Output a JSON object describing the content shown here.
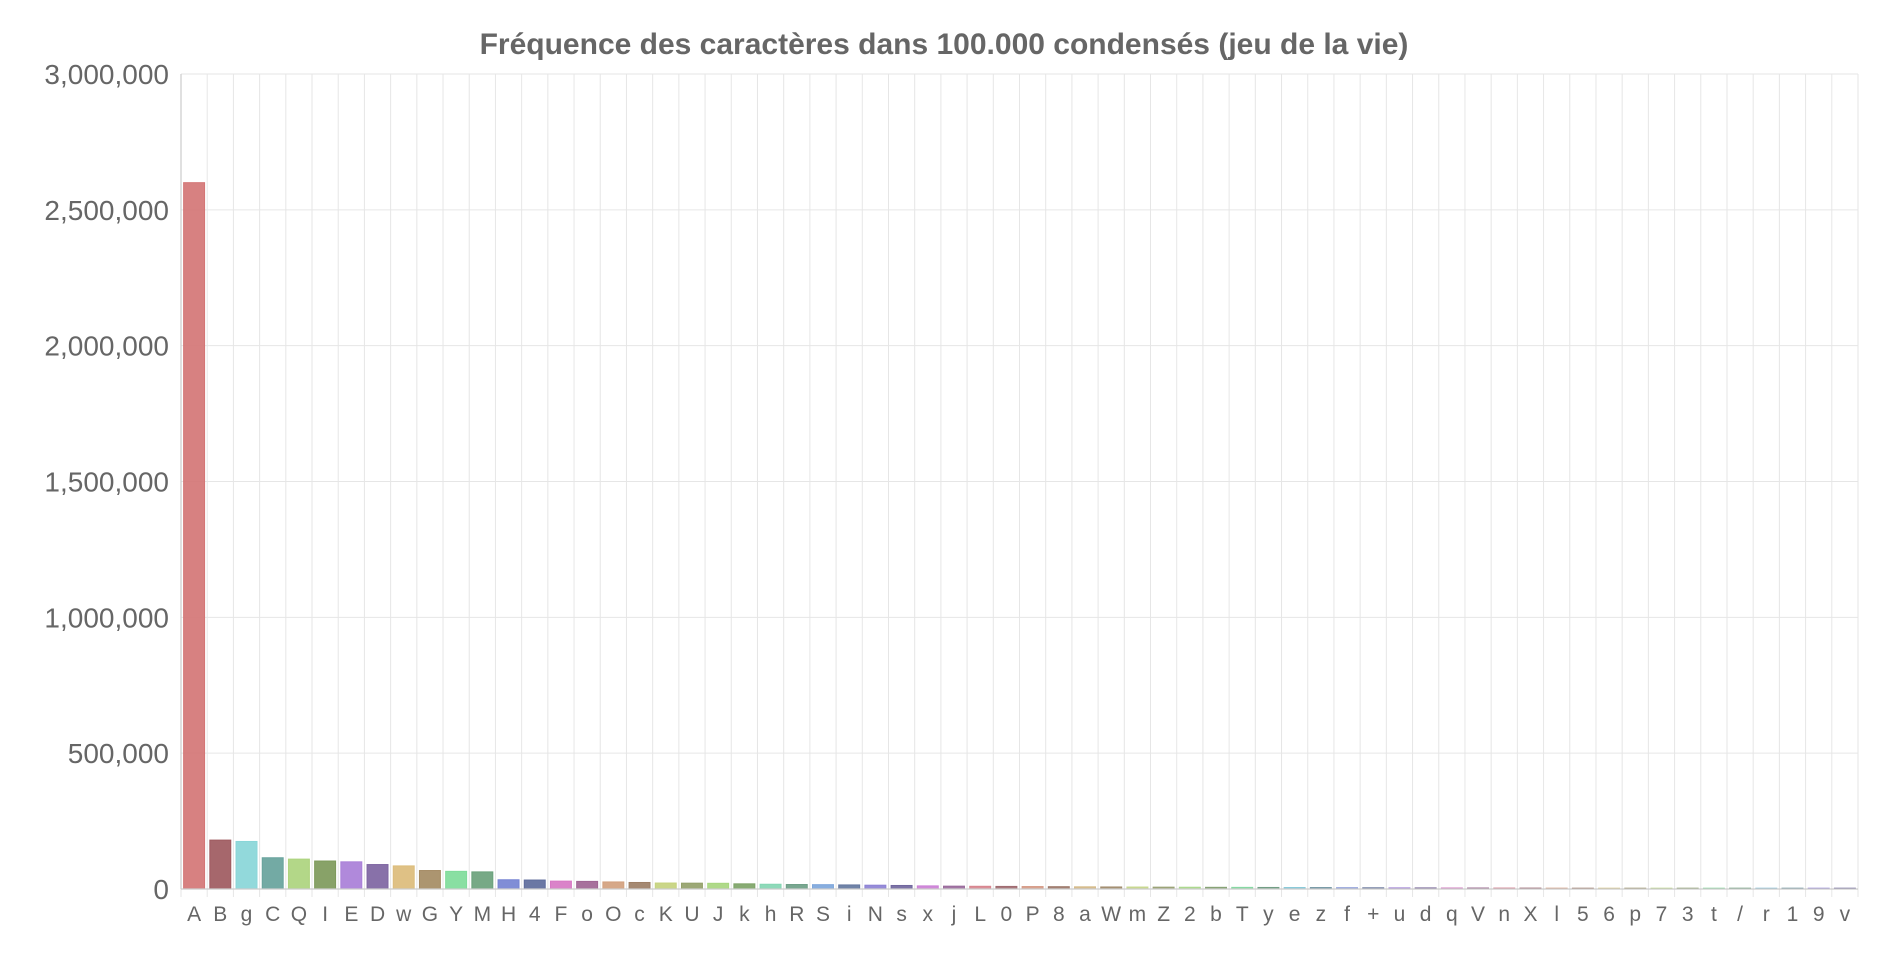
{
  "chart_data": {
    "type": "bar",
    "title": "Fréquence des caractères dans 100.000 condensés (jeu de la vie)",
    "xlabel": "",
    "ylabel": "",
    "ylim": [
      0,
      3000000
    ],
    "y_ticks": [
      "0",
      "500,000",
      "1,000,000",
      "1,500,000",
      "2,000,000",
      "2,500,000",
      "3,000,000"
    ],
    "grid": true,
    "legend": "none",
    "categories": [
      "A",
      "B",
      "g",
      "C",
      "Q",
      "I",
      "E",
      "D",
      "w",
      "G",
      "Y",
      "M",
      "H",
      "4",
      "F",
      "o",
      "O",
      "c",
      "K",
      "U",
      "J",
      "k",
      "h",
      "R",
      "S",
      "i",
      "N",
      "s",
      "x",
      "j",
      "L",
      "0",
      "P",
      "8",
      "a",
      "W",
      "m",
      "Z",
      "2",
      "b",
      "T",
      "y",
      "e",
      "z",
      "f",
      "+",
      "u",
      "d",
      "q",
      "V",
      "n",
      "X",
      "l",
      "5",
      "6",
      "p",
      "7",
      "3",
      "t",
      "/",
      "r",
      "1",
      "9",
      "v"
    ],
    "values": [
      2600000,
      180000,
      175000,
      115000,
      110000,
      103000,
      100000,
      90000,
      85000,
      68000,
      65000,
      63000,
      34000,
      33000,
      29000,
      28000,
      26000,
      24000,
      22000,
      21500,
      21000,
      19000,
      17500,
      16500,
      16000,
      15000,
      14000,
      13000,
      11500,
      10500,
      10000,
      9500,
      9000,
      8500,
      8000,
      7500,
      7200,
      6800,
      6500,
      6200,
      6000,
      5700,
      5400,
      5100,
      4800,
      4500,
      4300,
      4100,
      3900,
      3700,
      3500,
      3300,
      3100,
      2900,
      2700,
      2500,
      2300,
      2100,
      1900,
      1700,
      1500,
      1300,
      1100,
      900
    ],
    "colors": [
      "#d47676",
      "#9e5a5f",
      "#89d6d8",
      "#67a39c",
      "#add47e",
      "#7e9a5b",
      "#a97fd8",
      "#7e65a2",
      "#dcbc7b",
      "#a58c64",
      "#7fdc9a",
      "#6ba27c",
      "#7583d3",
      "#5e6c9c",
      "#d778c4",
      "#9f6594",
      "#d3a17e",
      "#9d7f66",
      "#c6d37e",
      "#94a16a",
      "#a8d67f",
      "#7ea467",
      "#84d6b3",
      "#6e9f87",
      "#7ea7dc",
      "#6478a0",
      "#8d82d5",
      "#71679e",
      "#cc80d6",
      "#9a6a9c",
      "#d7858f",
      "#a06b70",
      "#d59a86",
      "#9c7768",
      "#d4b987",
      "#a08b6c",
      "#c7d78c",
      "#99a274",
      "#aad88c",
      "#86a274",
      "#86d8a2",
      "#719e85",
      "#86c8d8",
      "#6a8f9e",
      "#8d9ed8",
      "#6e7ba0",
      "#a78cd8",
      "#80709e",
      "#d58cc8",
      "#9e7094",
      "#d78c9a",
      "#a0707b",
      "#d7a58c",
      "#a07d6e",
      "#d7c98c",
      "#a09970",
      "#bdd88c",
      "#8fa070",
      "#8cd8a0",
      "#70a080",
      "#8cc0d8",
      "#7096a0",
      "#9a8cd8",
      "#7a70a0"
    ]
  }
}
